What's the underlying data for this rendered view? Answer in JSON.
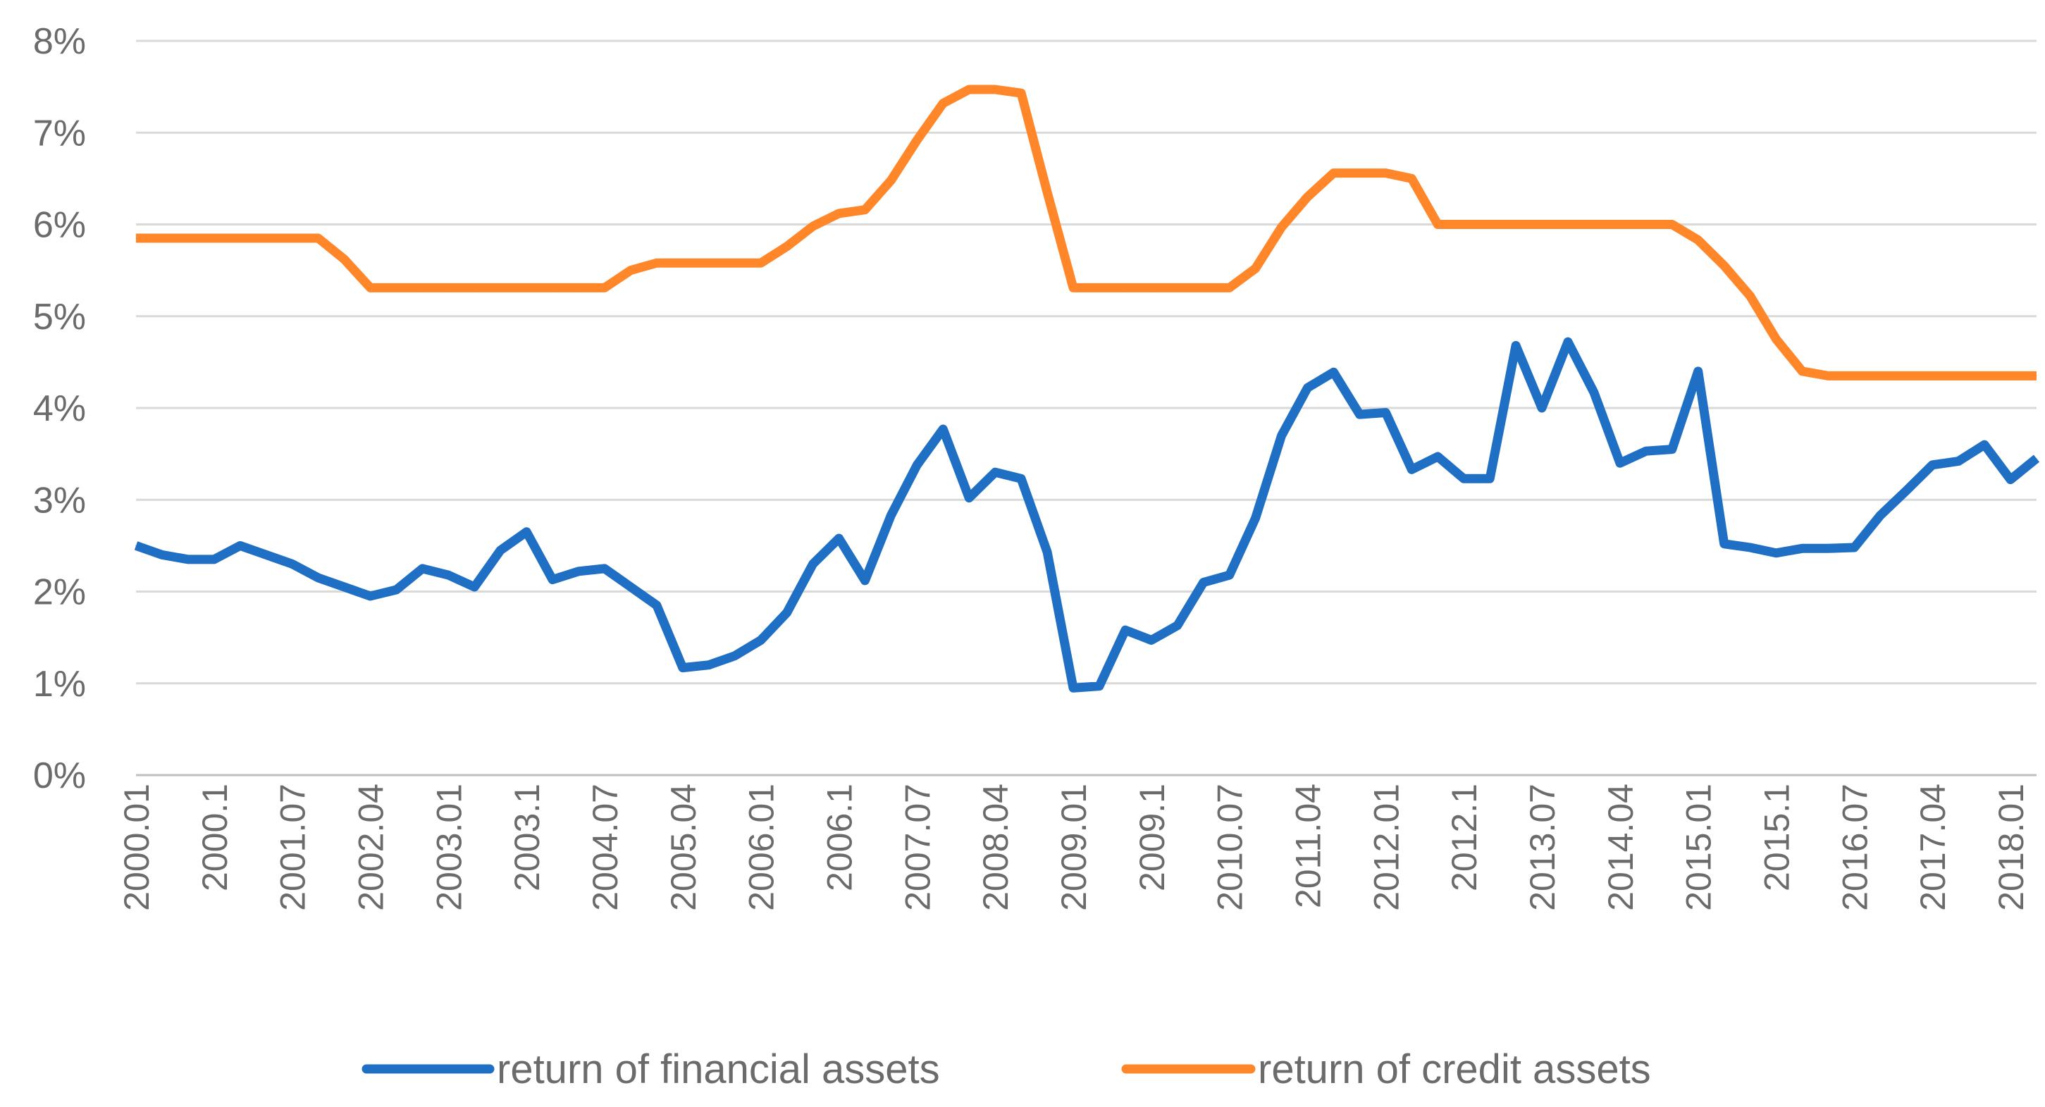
{
  "chart_data": {
    "type": "line",
    "title": "",
    "xlabel": "",
    "ylabel": "",
    "ylim": [
      0,
      8
    ],
    "y_tick_labels": [
      "0%",
      "1%",
      "2%",
      "3%",
      "4%",
      "5%",
      "6%",
      "7%",
      "8%"
    ],
    "grid": true,
    "legend_position": "bottom",
    "x_tick_labels": [
      "2000.01",
      "2000.1",
      "2001.07",
      "2002.04",
      "2003.01",
      "2003.1",
      "2004.07",
      "2005.04",
      "2006.01",
      "2006.1",
      "2007.07",
      "2008.04",
      "2009.01",
      "2009.1",
      "2010.07",
      "2011.04",
      "2012.01",
      "2012.1",
      "2013.07",
      "2014.04",
      "2015.01",
      "2015.1",
      "2016.07",
      "2017.04",
      "2018.01"
    ],
    "x_tick_every": 3,
    "series": [
      {
        "name": "return of financial assets",
        "color": "#1f6fc5",
        "values": [
          2.5,
          2.4,
          2.35,
          2.35,
          2.5,
          2.4,
          2.3,
          2.15,
          2.05,
          1.95,
          2.02,
          2.25,
          2.18,
          2.05,
          2.45,
          2.65,
          2.13,
          2.22,
          2.25,
          2.05,
          1.85,
          1.17,
          1.2,
          1.3,
          1.47,
          1.77,
          2.3,
          2.58,
          2.12,
          2.83,
          3.38,
          3.77,
          3.02,
          3.3,
          3.23,
          2.43,
          0.95,
          0.97,
          1.58,
          1.47,
          1.63,
          2.1,
          2.18,
          2.8,
          3.7,
          4.22,
          4.39,
          3.93,
          3.95,
          3.33,
          3.47,
          3.23,
          3.23,
          4.68,
          4.0,
          4.72,
          4.17,
          3.4,
          3.53,
          3.55,
          4.4,
          2.52,
          2.48,
          2.42,
          2.47,
          2.47,
          2.48,
          2.83,
          3.1,
          3.38,
          3.42,
          3.6,
          3.22,
          3.45
        ]
      },
      {
        "name": "return of credit assets",
        "color": "#ff8729",
        "values": [
          5.85,
          5.85,
          5.85,
          5.85,
          5.85,
          5.85,
          5.85,
          5.85,
          5.62,
          5.31,
          5.31,
          5.31,
          5.31,
          5.31,
          5.31,
          5.31,
          5.31,
          5.31,
          5.31,
          5.5,
          5.58,
          5.58,
          5.58,
          5.58,
          5.58,
          5.76,
          5.98,
          6.12,
          6.16,
          6.48,
          6.92,
          7.32,
          7.47,
          7.47,
          7.43,
          6.35,
          5.31,
          5.31,
          5.31,
          5.31,
          5.31,
          5.31,
          5.31,
          5.52,
          5.97,
          6.3,
          6.56,
          6.56,
          6.56,
          6.5,
          6.0,
          6.0,
          6.0,
          6.0,
          6.0,
          6.0,
          6.0,
          6.0,
          6.0,
          6.0,
          5.83,
          5.55,
          5.22,
          4.75,
          4.4,
          4.35,
          4.35,
          4.35,
          4.35,
          4.35,
          4.35,
          4.35,
          4.35,
          4.35
        ]
      }
    ]
  }
}
